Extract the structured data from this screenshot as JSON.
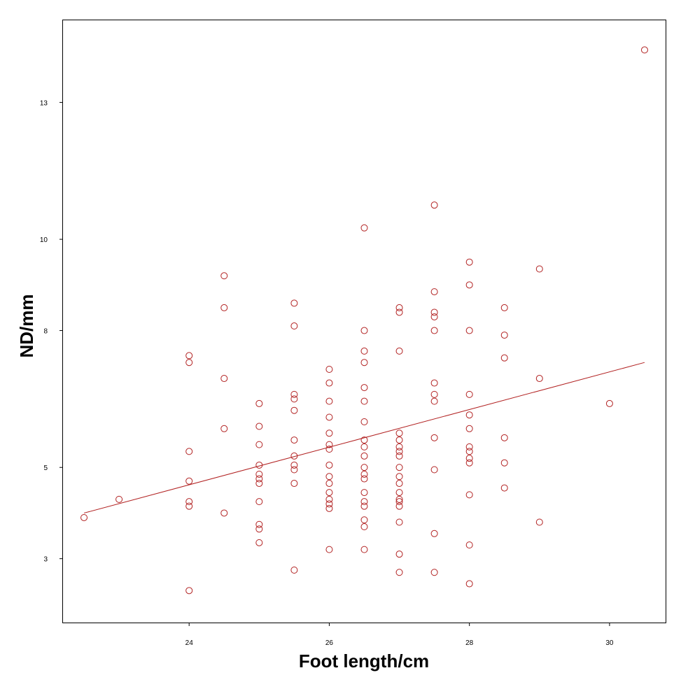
{
  "chart_data": {
    "type": "scatter",
    "title": "",
    "xlabel": "Foot length/cm",
    "ylabel": "ND/mm",
    "xlim": [
      22.2,
      30.8
    ],
    "ylim": [
      1.6,
      14.8
    ],
    "xticks": [
      24,
      26,
      28,
      30
    ],
    "yticks": [
      3,
      5,
      8,
      10,
      13
    ],
    "grid": false,
    "colors": {
      "points": "#b22222",
      "fit_line": "#b22222"
    },
    "series": [
      {
        "points": [
          [
            22.5,
            3.9
          ],
          [
            23.0,
            4.3
          ],
          [
            24.0,
            2.3
          ],
          [
            24.0,
            4.15
          ],
          [
            24.0,
            4.25
          ],
          [
            24.0,
            4.7
          ],
          [
            24.0,
            5.35
          ],
          [
            24.0,
            7.3
          ],
          [
            24.0,
            7.45
          ],
          [
            24.5,
            4.0
          ],
          [
            24.5,
            5.85
          ],
          [
            24.5,
            6.95
          ],
          [
            24.5,
            8.5
          ],
          [
            24.5,
            9.2
          ],
          [
            25.0,
            3.35
          ],
          [
            25.0,
            3.65
          ],
          [
            25.0,
            3.75
          ],
          [
            25.0,
            4.25
          ],
          [
            25.0,
            4.65
          ],
          [
            25.0,
            4.75
          ],
          [
            25.0,
            4.85
          ],
          [
            25.0,
            5.05
          ],
          [
            25.0,
            5.5
          ],
          [
            25.0,
            5.9
          ],
          [
            25.0,
            6.4
          ],
          [
            25.5,
            2.75
          ],
          [
            25.5,
            4.65
          ],
          [
            25.5,
            4.95
          ],
          [
            25.5,
            5.05
          ],
          [
            25.5,
            5.25
          ],
          [
            25.5,
            5.6
          ],
          [
            25.5,
            6.25
          ],
          [
            25.5,
            6.5
          ],
          [
            25.5,
            6.6
          ],
          [
            25.5,
            8.1
          ],
          [
            25.5,
            8.6
          ],
          [
            26.0,
            3.2
          ],
          [
            26.0,
            4.1
          ],
          [
            26.0,
            4.2
          ],
          [
            26.0,
            4.3
          ],
          [
            26.0,
            4.45
          ],
          [
            26.0,
            4.65
          ],
          [
            26.0,
            4.8
          ],
          [
            26.0,
            5.05
          ],
          [
            26.0,
            5.4
          ],
          [
            26.0,
            5.5
          ],
          [
            26.0,
            5.75
          ],
          [
            26.0,
            6.1
          ],
          [
            26.0,
            6.45
          ],
          [
            26.0,
            6.85
          ],
          [
            26.0,
            7.15
          ],
          [
            26.5,
            3.2
          ],
          [
            26.5,
            3.7
          ],
          [
            26.5,
            3.85
          ],
          [
            26.5,
            4.15
          ],
          [
            26.5,
            4.25
          ],
          [
            26.5,
            4.45
          ],
          [
            26.5,
            4.75
          ],
          [
            26.5,
            4.85
          ],
          [
            26.5,
            5.0
          ],
          [
            26.5,
            5.25
          ],
          [
            26.5,
            5.45
          ],
          [
            26.5,
            5.6
          ],
          [
            26.5,
            6.0
          ],
          [
            26.5,
            6.45
          ],
          [
            26.5,
            6.75
          ],
          [
            26.5,
            7.3
          ],
          [
            26.5,
            7.55
          ],
          [
            26.5,
            8.0
          ],
          [
            26.5,
            10.25
          ],
          [
            27.0,
            2.7
          ],
          [
            27.0,
            3.1
          ],
          [
            27.0,
            3.8
          ],
          [
            27.0,
            4.15
          ],
          [
            27.0,
            4.25
          ],
          [
            27.0,
            4.3
          ],
          [
            27.0,
            4.45
          ],
          [
            27.0,
            4.65
          ],
          [
            27.0,
            4.8
          ],
          [
            27.0,
            5.0
          ],
          [
            27.0,
            5.25
          ],
          [
            27.0,
            5.35
          ],
          [
            27.0,
            5.45
          ],
          [
            27.0,
            5.6
          ],
          [
            27.0,
            5.75
          ],
          [
            27.0,
            7.55
          ],
          [
            27.0,
            8.4
          ],
          [
            27.0,
            8.5
          ],
          [
            27.5,
            2.7
          ],
          [
            27.5,
            3.55
          ],
          [
            27.5,
            4.95
          ],
          [
            27.5,
            5.65
          ],
          [
            27.5,
            6.45
          ],
          [
            27.5,
            6.6
          ],
          [
            27.5,
            6.85
          ],
          [
            27.5,
            8.0
          ],
          [
            27.5,
            8.3
          ],
          [
            27.5,
            8.4
          ],
          [
            27.5,
            8.85
          ],
          [
            27.5,
            10.75
          ],
          [
            28.0,
            2.45
          ],
          [
            28.0,
            3.3
          ],
          [
            28.0,
            4.4
          ],
          [
            28.0,
            5.1
          ],
          [
            28.0,
            5.2
          ],
          [
            28.0,
            5.35
          ],
          [
            28.0,
            5.45
          ],
          [
            28.0,
            5.85
          ],
          [
            28.0,
            6.15
          ],
          [
            28.0,
            6.6
          ],
          [
            28.0,
            8.0
          ],
          [
            28.0,
            9.0
          ],
          [
            28.0,
            9.5
          ],
          [
            28.5,
            4.55
          ],
          [
            28.5,
            5.1
          ],
          [
            28.5,
            5.65
          ],
          [
            28.5,
            7.4
          ],
          [
            28.5,
            7.9
          ],
          [
            28.5,
            8.5
          ],
          [
            29.0,
            3.8
          ],
          [
            29.0,
            6.95
          ],
          [
            29.0,
            9.35
          ],
          [
            30.0,
            6.4
          ],
          [
            30.5,
            14.15
          ]
        ]
      }
    ],
    "fit_line": {
      "x": [
        22.5,
        30.5
      ],
      "y": [
        4.0,
        7.3
      ]
    }
  }
}
